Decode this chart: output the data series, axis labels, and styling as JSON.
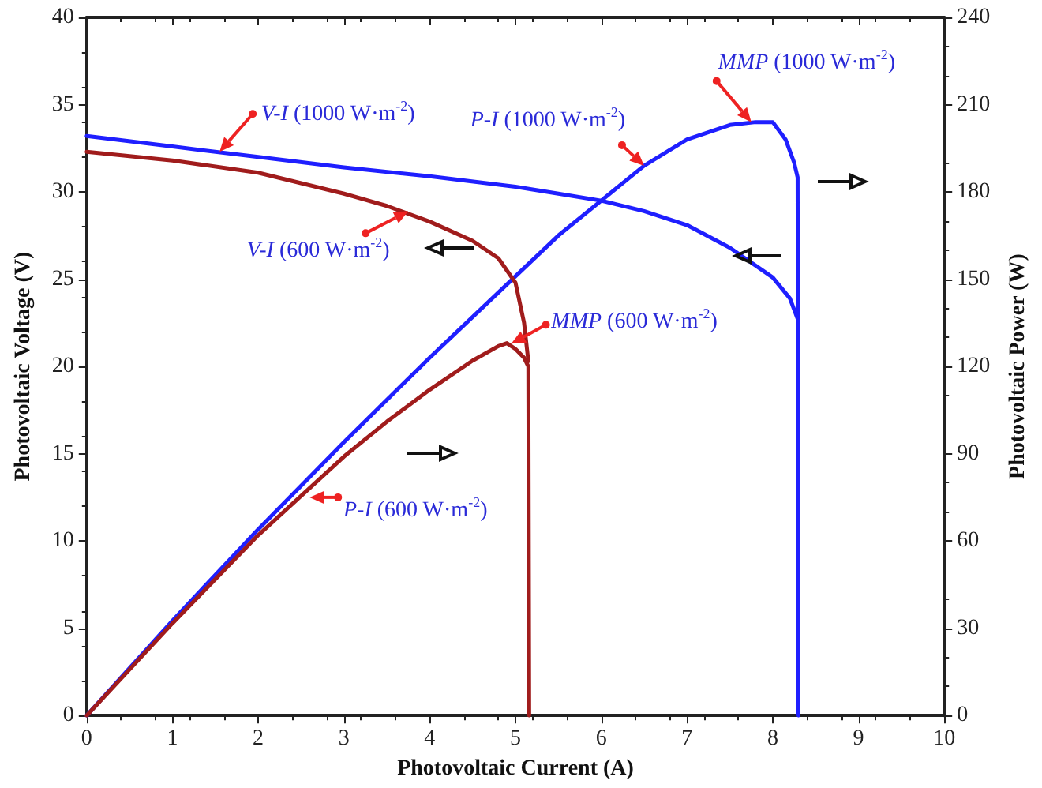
{
  "chart_data": {
    "type": "line",
    "xlabel": "Photovoltaic Current (A)",
    "ylabel": "Photovoltaic Voltage (V)",
    "y2label": "Photovoltaic Power (W)",
    "xlim": [
      0,
      10
    ],
    "xticks": [
      0,
      1,
      2,
      3,
      4,
      5,
      6,
      7,
      8,
      9,
      10
    ],
    "ylim": [
      0,
      40
    ],
    "yticks": [
      0,
      5,
      10,
      15,
      20,
      25,
      30,
      35,
      40
    ],
    "y2lim": [
      0,
      240
    ],
    "y2ticks": [
      0,
      30,
      60,
      90,
      120,
      150,
      180,
      210,
      240
    ],
    "grid": false,
    "marker": "none",
    "line_style": "solid",
    "series": [
      {
        "color": "#1f1fff",
        "x": [
          0,
          1,
          2,
          3,
          4,
          5,
          5.5,
          6,
          6.5,
          7,
          7.5,
          8,
          8.2,
          8.3
        ],
        "values": [
          33.2,
          32.6,
          32.0,
          31.4,
          30.9,
          30.3,
          29.9,
          29.5,
          28.9,
          28.1,
          26.8,
          25.1,
          23.9,
          22.6
        ]
      },
      {
        "color": "#1f1fff",
        "axis": "y2",
        "x": [
          0,
          1,
          2,
          3,
          4,
          5,
          5.5,
          6,
          6.5,
          7,
          7.5,
          7.8,
          8,
          8.15,
          8.25,
          8.29,
          8.3
        ],
        "values": [
          0,
          32.6,
          64,
          94,
          123,
          151,
          165,
          177,
          189,
          198,
          203,
          204,
          204,
          198,
          190,
          185,
          0
        ]
      },
      {
        "color": "#a01c1c",
        "x": [
          0,
          1,
          2,
          3,
          3.5,
          4,
          4.5,
          4.8,
          5,
          5.1,
          5.15
        ],
        "values": [
          32.3,
          31.8,
          31.1,
          29.9,
          29.2,
          28.3,
          27.2,
          26.2,
          24.8,
          22.5,
          20.3
        ]
      },
      {
        "color": "#a01c1c",
        "axis": "y2",
        "x": [
          0,
          1,
          2,
          3,
          3.5,
          4,
          4.5,
          4.8,
          4.9,
          5,
          5.1,
          5.15,
          5.16
        ],
        "values": [
          0,
          31.7,
          62,
          89,
          101,
          112,
          122,
          127,
          128,
          126,
          123,
          120,
          0
        ]
      }
    ],
    "annotations": [
      {
        "text": "V-I (1000 W·m$^{-2}$)",
        "x": 1.55,
        "y": 32.3
      },
      {
        "text": "P-I (1000 W·m$^{-2}$)",
        "x": 6.5,
        "y": 31.5
      },
      {
        "text": "MMP (1000 W·m$^{-2}$)",
        "x": 7.75,
        "y": 34
      },
      {
        "text": "V-I (600 W·m$^{-2}$)",
        "x": 3.75,
        "y": 28.9
      },
      {
        "text": "MMP (600 W·m$^{-2}$)",
        "x": 4.95,
        "y": 21.3
      },
      {
        "text": "P-I (600 W·m$^{-2}$)",
        "x": 2.6,
        "y": 12.5
      }
    ]
  }
}
